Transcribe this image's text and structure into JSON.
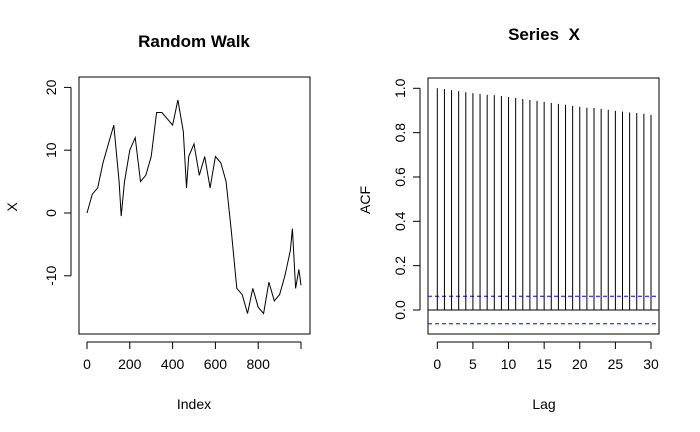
{
  "chart_data": [
    {
      "type": "line",
      "title": "Random Walk",
      "xlabel": "Index",
      "ylabel": "X",
      "xlim": [
        0,
        1000
      ],
      "ylim": [
        -18,
        21
      ],
      "xticks": [
        0,
        200,
        400,
        600,
        800
      ],
      "yticks": [
        -10,
        0,
        10,
        20
      ],
      "grid": false,
      "x": [
        0,
        25,
        50,
        75,
        100,
        125,
        150,
        160,
        175,
        200,
        225,
        250,
        275,
        300,
        325,
        350,
        375,
        400,
        425,
        450,
        465,
        475,
        500,
        525,
        550,
        575,
        600,
        625,
        650,
        675,
        700,
        725,
        750,
        775,
        800,
        825,
        850,
        875,
        900,
        925,
        950,
        960,
        975,
        990,
        1000
      ],
      "y": [
        0,
        3,
        4,
        8,
        11,
        14,
        5,
        -0.5,
        5,
        10,
        12,
        5,
        6,
        9,
        16,
        16,
        15,
        14,
        18,
        13,
        4,
        9,
        11,
        6,
        9,
        4,
        9,
        8,
        5,
        -3,
        -12,
        -13,
        -16,
        -12,
        -15,
        -16,
        -11,
        -14,
        -13,
        -10,
        -6,
        -2.5,
        -12,
        -9,
        -11.5
      ]
    },
    {
      "type": "bar",
      "title": "Series  X",
      "xlabel": "Lag",
      "ylabel": "ACF",
      "xlim": [
        -1.3,
        31
      ],
      "ylim": [
        -0.09,
        1.04
      ],
      "xticks": [
        0,
        5,
        10,
        15,
        20,
        25,
        30
      ],
      "yticks": [
        "0.0",
        "0.2",
        "0.4",
        "0.6",
        "0.8",
        "1.0"
      ],
      "grid": false,
      "lags": [
        0,
        1,
        2,
        3,
        4,
        5,
        6,
        7,
        8,
        9,
        10,
        11,
        12,
        13,
        14,
        15,
        16,
        17,
        18,
        19,
        20,
        21,
        22,
        23,
        24,
        25,
        26,
        27,
        28,
        29,
        30
      ],
      "values": [
        1.0,
        0.997,
        0.992,
        0.987,
        0.982,
        0.978,
        0.974,
        0.971,
        0.969,
        0.965,
        0.961,
        0.956,
        0.952,
        0.947,
        0.943,
        0.939,
        0.934,
        0.93,
        0.926,
        0.921,
        0.917,
        0.913,
        0.911,
        0.907,
        0.903,
        0.899,
        0.895,
        0.891,
        0.889,
        0.885,
        0.88
      ],
      "confidence_bound": 0.062,
      "confidence_color": "#0000ff"
    }
  ]
}
